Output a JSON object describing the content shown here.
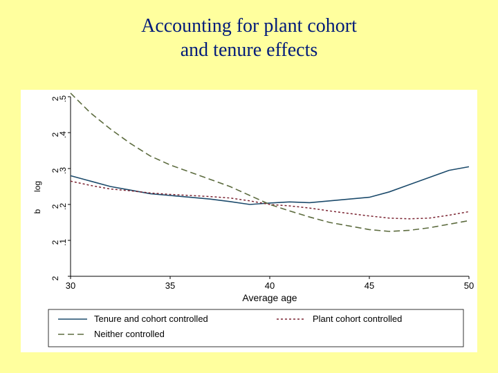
{
  "title_line1": "Accounting for plant cohort",
  "title_line2": "and tenure effects",
  "chart": {
    "type": "line",
    "background_color": "#ffffff",
    "slide_background": "#ffff9e",
    "plot_border_color": "#000000",
    "xaxis": {
      "title": "Average age",
      "min": 30,
      "max": 50,
      "ticks": [
        30,
        35,
        40,
        45,
        50
      ]
    },
    "yaxis": {
      "label": "log",
      "min": 2.0,
      "max": 2.5,
      "ticks": [
        2.0,
        2.1,
        2.2,
        2.3,
        2.4,
        2.5
      ],
      "tick_labels_top": [
        "2",
        "2",
        "2",
        "2",
        "2",
        "2"
      ],
      "tick_labels_bot": [
        "",
        ".1",
        ".2",
        ".3",
        ".4",
        ".5"
      ],
      "second_label_x": 2.2,
      "second_label_text": "b"
    },
    "series": [
      {
        "name": "Tenure and cohort controlled",
        "color": "#1b4a6b",
        "dash": "none",
        "width": 1.6,
        "xy": [
          [
            30,
            2.28
          ],
          [
            31,
            2.265
          ],
          [
            32,
            2.25
          ],
          [
            33,
            2.24
          ],
          [
            34,
            2.23
          ],
          [
            35,
            2.225
          ],
          [
            36,
            2.22
          ],
          [
            37,
            2.215
          ],
          [
            38,
            2.208
          ],
          [
            39,
            2.2
          ],
          [
            40,
            2.204
          ],
          [
            41,
            2.207
          ],
          [
            42,
            2.205
          ],
          [
            43,
            2.21
          ],
          [
            44,
            2.215
          ],
          [
            45,
            2.22
          ],
          [
            46,
            2.235
          ],
          [
            47,
            2.255
          ],
          [
            48,
            2.275
          ],
          [
            49,
            2.295
          ],
          [
            50,
            2.305
          ]
        ]
      },
      {
        "name": "Plant cohort controlled",
        "color": "#7a2230",
        "dash": "3,3",
        "width": 1.5,
        "xy": [
          [
            30,
            2.265
          ],
          [
            31,
            2.253
          ],
          [
            32,
            2.243
          ],
          [
            33,
            2.238
          ],
          [
            34,
            2.232
          ],
          [
            35,
            2.228
          ],
          [
            36,
            2.225
          ],
          [
            37,
            2.222
          ],
          [
            38,
            2.218
          ],
          [
            39,
            2.21
          ],
          [
            40,
            2.2
          ],
          [
            41,
            2.196
          ],
          [
            42,
            2.19
          ],
          [
            43,
            2.182
          ],
          [
            44,
            2.175
          ],
          [
            45,
            2.168
          ],
          [
            46,
            2.162
          ],
          [
            47,
            2.16
          ],
          [
            48,
            2.162
          ],
          [
            49,
            2.17
          ],
          [
            50,
            2.18
          ]
        ]
      },
      {
        "name": "Neither controlled",
        "color": "#5c6b3e",
        "dash": "9,5",
        "width": 1.6,
        "xy": [
          [
            30,
            2.51
          ],
          [
            31,
            2.455
          ],
          [
            32,
            2.41
          ],
          [
            33,
            2.37
          ],
          [
            34,
            2.335
          ],
          [
            35,
            2.31
          ],
          [
            36,
            2.29
          ],
          [
            37,
            2.27
          ],
          [
            38,
            2.25
          ],
          [
            39,
            2.225
          ],
          [
            40,
            2.2
          ],
          [
            41,
            2.182
          ],
          [
            42,
            2.165
          ],
          [
            43,
            2.15
          ],
          [
            44,
            2.14
          ],
          [
            45,
            2.13
          ],
          [
            46,
            2.125
          ],
          [
            47,
            2.128
          ],
          [
            48,
            2.135
          ],
          [
            49,
            2.145
          ],
          [
            50,
            2.155
          ]
        ]
      }
    ],
    "legend": {
      "cols": 2,
      "items": [
        {
          "series": 0,
          "label": "Tenure and cohort controlled"
        },
        {
          "series": 1,
          "label": "Plant cohort controlled"
        },
        {
          "series": 2,
          "label": "Neither controlled"
        }
      ]
    }
  }
}
